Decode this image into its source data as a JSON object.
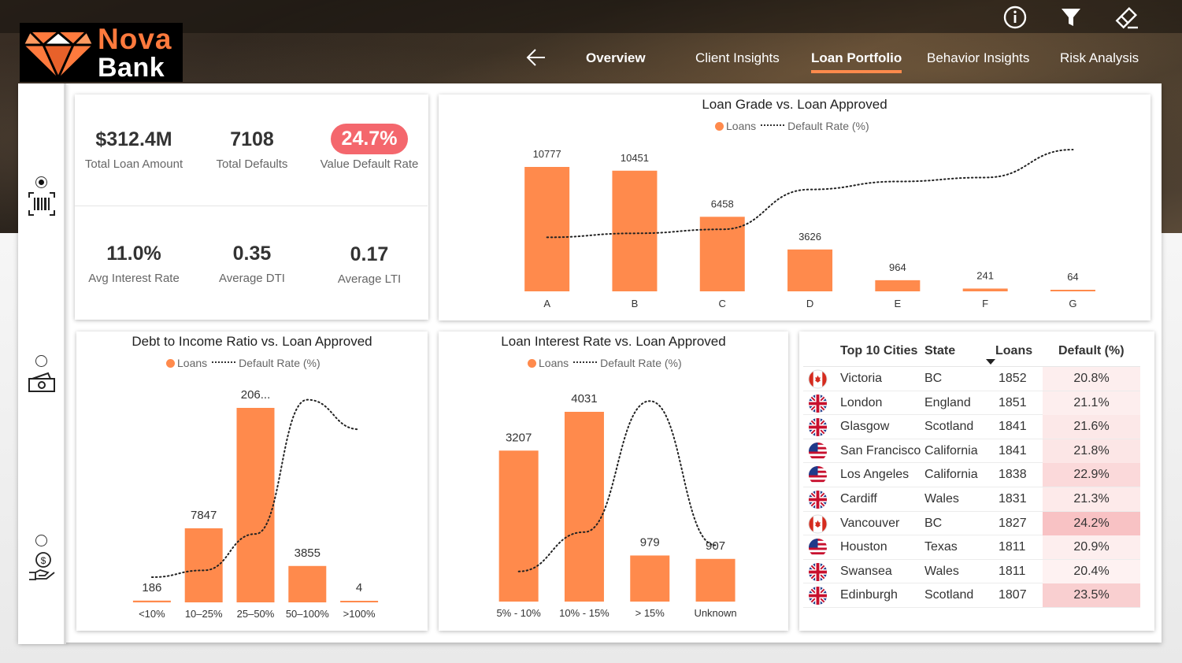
{
  "brand": {
    "line1": "Nova",
    "line2": "Bank"
  },
  "top_icons": [
    "info-icon",
    "filter-icon",
    "eraser-icon"
  ],
  "nav": {
    "back_icon": "arrow-left-icon",
    "tabs": [
      {
        "label": "Overview",
        "bold": true,
        "active": false
      },
      {
        "label": "Client Insights",
        "bold": false,
        "active": false
      },
      {
        "label": "Loan Portfolio",
        "bold": true,
        "active": true
      },
      {
        "label": "Behavior Insights",
        "bold": false,
        "active": false
      },
      {
        "label": "Risk Analysis",
        "bold": false,
        "active": false
      }
    ]
  },
  "side_rail": [
    {
      "icon": "barcode-icon",
      "selected": true
    },
    {
      "icon": "cash-icon",
      "selected": false
    },
    {
      "icon": "money-hand-icon",
      "selected": false
    }
  ],
  "kpis": [
    {
      "value": "$312.4M",
      "label": "Total Loan Amount"
    },
    {
      "value": "7108",
      "label": "Total Defaults"
    },
    {
      "value": "24.7%",
      "label": "Value Default Rate",
      "highlight": "#f4676d"
    },
    {
      "value": "11.0%",
      "label": "Avg Interest Rate"
    },
    {
      "value": "0.35",
      "label": "Average DTI"
    },
    {
      "value": "0.17",
      "label": "Average LTI"
    }
  ],
  "legend": {
    "bars": "Loans",
    "line": "Default Rate (%)"
  },
  "chart_data": [
    {
      "type": "bar",
      "title": "Loan Grade vs. Loan Approved",
      "categories": [
        "A",
        "B",
        "C",
        "D",
        "E",
        "F",
        "G"
      ],
      "series": [
        {
          "name": "Loans",
          "values": [
            10777,
            10451,
            6458,
            3626,
            964,
            241,
            64
          ],
          "color": "#ff8a4c"
        },
        {
          "name": "Default Rate (%)",
          "type": "line",
          "style": "dotted",
          "values": [
            10,
            11,
            12,
            22,
            24,
            25,
            32
          ]
        }
      ],
      "data_labels": [
        "10777",
        "10451",
        "6458",
        "3626",
        "964",
        "241",
        "64"
      ]
    },
    {
      "type": "bar",
      "title": "Debt to Income Ratio vs. Loan Approved",
      "categories": [
        "<10%",
        "10–25%",
        "25–50%",
        "50–100%",
        ">100%"
      ],
      "series": [
        {
          "name": "Loans",
          "values": [
            186,
            7847,
            20600,
            3855,
            4
          ],
          "color": "#ff8a4c"
        },
        {
          "name": "Default Rate (%)",
          "type": "line",
          "style": "dotted",
          "values": [
            9,
            12,
            28,
            87,
            74
          ]
        }
      ],
      "data_labels": [
        "186",
        "7847",
        "206...",
        "3855",
        "4"
      ]
    },
    {
      "type": "bar",
      "title": "Loan Interest Rate vs. Loan Approved",
      "categories": [
        "5% - 10%",
        "10% - 15%",
        "> 15%",
        "Unknown"
      ],
      "series": [
        {
          "name": "Loans",
          "values": [
            3207,
            4031,
            979,
            907
          ],
          "color": "#ff8a4c"
        },
        {
          "name": "Default Rate (%)",
          "type": "line",
          "style": "dotted",
          "values": [
            8,
            20,
            60,
            16
          ]
        }
      ],
      "data_labels": [
        "3207",
        "4031",
        "979",
        "907"
      ]
    }
  ],
  "cities_table": {
    "headers": [
      "Top 10 Cities",
      "State",
      "Loans",
      "Default (%)"
    ],
    "sort_icon": "sort-down-icon",
    "rows": [
      {
        "flag": "canada-flag-icon",
        "city": "Victoria",
        "state": "BC",
        "loans": "1852",
        "default": "20.8%",
        "tint": "#fdeeee"
      },
      {
        "flag": "uk-flag-icon",
        "city": "London",
        "state": "England",
        "loans": "1851",
        "default": "21.1%",
        "tint": "#fdeeee"
      },
      {
        "flag": "uk-flag-icon",
        "city": "Glasgow",
        "state": "Scotland",
        "loans": "1841",
        "default": "21.6%",
        "tint": "#fce8e8"
      },
      {
        "flag": "us-flag-icon",
        "city": "San Francisco",
        "state": "California",
        "loans": "1841",
        "default": "21.8%",
        "tint": "#fce6e6"
      },
      {
        "flag": "us-flag-icon",
        "city": "Los Angeles",
        "state": "California",
        "loans": "1838",
        "default": "22.9%",
        "tint": "#fbd9da"
      },
      {
        "flag": "uk-flag-icon",
        "city": "Cardiff",
        "state": "Wales",
        "loans": "1831",
        "default": "21.3%",
        "tint": "#fdeaea"
      },
      {
        "flag": "canada-flag-icon",
        "city": "Vancouver",
        "state": "BC",
        "loans": "1827",
        "default": "24.2%",
        "tint": "#f8c2c4"
      },
      {
        "flag": "us-flag-icon",
        "city": "Houston",
        "state": "Texas",
        "loans": "1811",
        "default": "20.9%",
        "tint": "#fdeeee"
      },
      {
        "flag": "uk-flag-icon",
        "city": "Swansea",
        "state": "Wales",
        "loans": "1811",
        "default": "20.4%",
        "tint": "#fef2f2"
      },
      {
        "flag": "uk-flag-icon",
        "city": "Edinburgh",
        "state": "Scotland",
        "loans": "1807",
        "default": "23.5%",
        "tint": "#f9cfd0"
      }
    ]
  }
}
